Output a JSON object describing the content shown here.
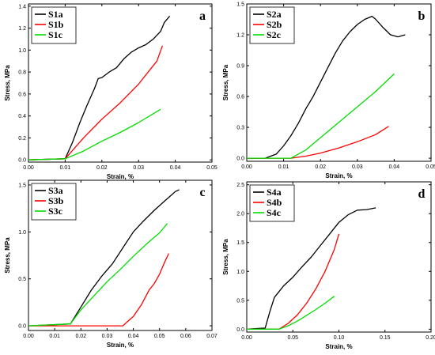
{
  "chart_data": [
    {
      "panel": "a",
      "type": "line",
      "xlabel": "Strain, %",
      "ylabel": "Stress, MPa",
      "xlim": [
        0,
        0.05
      ],
      "ylim": [
        -0.02,
        1.42
      ],
      "xticks": [
        "0.00",
        "0.01",
        "0.02",
        "0.03",
        "0.04",
        "0.05"
      ],
      "yticks": [
        "0.0",
        "0.2",
        "0.4",
        "0.6",
        "0.8",
        "1.0",
        "1.2",
        "1.4"
      ],
      "xtick_values": [
        0,
        0.01,
        0.02,
        0.03,
        0.04,
        0.05
      ],
      "ytick_values": [
        0,
        0.2,
        0.4,
        0.6,
        0.8,
        1.0,
        1.2,
        1.4
      ],
      "legend_position": "top-left",
      "series": [
        {
          "name": "S1a",
          "color": "#000000",
          "x": [
            0,
            0.01,
            0.012,
            0.014,
            0.016,
            0.018,
            0.019,
            0.02,
            0.022,
            0.024,
            0.026,
            0.028,
            0.03,
            0.032,
            0.034,
            0.036,
            0.037,
            0.0385
          ],
          "y": [
            0,
            0.01,
            0.16,
            0.34,
            0.5,
            0.65,
            0.74,
            0.75,
            0.8,
            0.84,
            0.92,
            0.98,
            1.02,
            1.05,
            1.1,
            1.17,
            1.25,
            1.31
          ]
        },
        {
          "name": "S1b",
          "color": "#ff0000",
          "x": [
            0,
            0.01,
            0.015,
            0.02,
            0.025,
            0.03,
            0.035,
            0.0365
          ],
          "y": [
            0,
            0.01,
            0.2,
            0.37,
            0.52,
            0.69,
            0.9,
            1.04
          ]
        },
        {
          "name": "S1c",
          "color": "#00dd00",
          "x": [
            0,
            0.01,
            0.015,
            0.02,
            0.025,
            0.03,
            0.035,
            0.036
          ],
          "y": [
            0,
            0.01,
            0.08,
            0.17,
            0.25,
            0.34,
            0.44,
            0.46
          ]
        }
      ],
      "panel_label": "a"
    },
    {
      "panel": "b",
      "type": "line",
      "xlabel": "Strain, %",
      "ylabel": "Stress, MPa",
      "xlim": [
        0,
        0.05
      ],
      "ylim": [
        -0.03,
        1.5
      ],
      "xticks": [
        "0.00",
        "0.01",
        "0.02",
        "0.03",
        "0.04",
        "0.05"
      ],
      "yticks": [
        "0.0",
        "0.3",
        "0.6",
        "0.9",
        "1.2",
        "1.5"
      ],
      "xtick_values": [
        0,
        0.01,
        0.02,
        0.03,
        0.04,
        0.05
      ],
      "ytick_values": [
        0,
        0.3,
        0.6,
        0.9,
        1.2,
        1.5
      ],
      "legend_position": "top-left",
      "series": [
        {
          "name": "S2a",
          "color": "#000000",
          "x": [
            0,
            0.005,
            0.008,
            0.01,
            0.012,
            0.014,
            0.016,
            0.018,
            0.02,
            0.022,
            0.024,
            0.026,
            0.028,
            0.03,
            0.032,
            0.034,
            0.035,
            0.037,
            0.039,
            0.041,
            0.043
          ],
          "y": [
            0,
            0.0,
            0.04,
            0.12,
            0.22,
            0.34,
            0.48,
            0.6,
            0.74,
            0.88,
            1.02,
            1.14,
            1.23,
            1.3,
            1.35,
            1.38,
            1.35,
            1.27,
            1.2,
            1.18,
            1.2
          ]
        },
        {
          "name": "S2b",
          "color": "#ff0000",
          "x": [
            0,
            0.012,
            0.016,
            0.02,
            0.025,
            0.03,
            0.035,
            0.0385
          ],
          "y": [
            0,
            0.0,
            0.02,
            0.05,
            0.1,
            0.16,
            0.23,
            0.31
          ]
        },
        {
          "name": "S2c",
          "color": "#00dd00",
          "x": [
            0,
            0.012,
            0.016,
            0.02,
            0.025,
            0.03,
            0.035,
            0.04
          ],
          "y": [
            0,
            0.0,
            0.08,
            0.2,
            0.35,
            0.5,
            0.65,
            0.82
          ]
        }
      ],
      "panel_label": "b"
    },
    {
      "panel": "c",
      "type": "line",
      "xlabel": "Strain, %",
      "ylabel": "Stress, MPa",
      "xlim": [
        0,
        0.07
      ],
      "ylim": [
        -0.05,
        1.55
      ],
      "xticks": [
        "0.00",
        "0.01",
        "0.02",
        "0.03",
        "0.04",
        "0.05",
        "0.06",
        "0.07"
      ],
      "yticks": [
        "0.0",
        "0.5",
        "1.0",
        "1.5"
      ],
      "xtick_values": [
        0,
        0.01,
        0.02,
        0.03,
        0.04,
        0.05,
        0.06,
        0.07
      ],
      "ytick_values": [
        0,
        0.5,
        1.0,
        1.5
      ],
      "legend_position": "top-left",
      "series": [
        {
          "name": "S3a",
          "color": "#000000",
          "x": [
            0,
            0.016,
            0.02,
            0.024,
            0.028,
            0.032,
            0.036,
            0.04,
            0.044,
            0.048,
            0.052,
            0.054,
            0.056,
            0.0575
          ],
          "y": [
            0,
            0.02,
            0.2,
            0.38,
            0.53,
            0.66,
            0.83,
            1.0,
            1.12,
            1.23,
            1.33,
            1.38,
            1.43,
            1.45
          ]
        },
        {
          "name": "S3b",
          "color": "#ff0000",
          "x": [
            0,
            0.036,
            0.038,
            0.04,
            0.043,
            0.046,
            0.048,
            0.05,
            0.052,
            0.0535
          ],
          "y": [
            0,
            0.0,
            0.05,
            0.1,
            0.22,
            0.38,
            0.45,
            0.55,
            0.68,
            0.77
          ]
        },
        {
          "name": "S3c",
          "color": "#00dd00",
          "x": [
            0,
            0.016,
            0.02,
            0.025,
            0.03,
            0.035,
            0.04,
            0.045,
            0.05,
            0.053
          ],
          "y": [
            0,
            0.02,
            0.17,
            0.32,
            0.47,
            0.6,
            0.74,
            0.87,
            0.99,
            1.09
          ]
        }
      ],
      "panel_label": "c"
    },
    {
      "panel": "d",
      "type": "line",
      "xlabel": "Strain, %",
      "ylabel": "Stress, MPa",
      "xlim": [
        0,
        0.2
      ],
      "ylim": [
        -0.05,
        2.55
      ],
      "xticks": [
        "0.00",
        "0.05",
        "0.10",
        "0.15",
        "0.20"
      ],
      "yticks": [
        "0.0",
        "0.5",
        "1.0",
        "1.5",
        "2.0",
        "2.5"
      ],
      "xtick_values": [
        0,
        0.05,
        0.1,
        0.15,
        0.2
      ],
      "ytick_values": [
        0,
        0.5,
        1.0,
        1.5,
        2.0,
        2.5
      ],
      "legend_position": "top-left",
      "series": [
        {
          "name": "S4a",
          "color": "#000000",
          "x": [
            0,
            0.02,
            0.025,
            0.03,
            0.035,
            0.04,
            0.05,
            0.06,
            0.07,
            0.08,
            0.09,
            0.1,
            0.11,
            0.12,
            0.13,
            0.14
          ],
          "y": [
            0,
            0.02,
            0.3,
            0.55,
            0.65,
            0.75,
            0.9,
            1.08,
            1.25,
            1.45,
            1.65,
            1.85,
            1.98,
            2.06,
            2.07,
            2.1
          ]
        },
        {
          "name": "S4b",
          "color": "#ff0000",
          "x": [
            0,
            0.035,
            0.045,
            0.055,
            0.065,
            0.075,
            0.085,
            0.095,
            0.1
          ],
          "y": [
            0,
            0.0,
            0.1,
            0.25,
            0.45,
            0.7,
            1.0,
            1.38,
            1.65
          ]
        },
        {
          "name": "S4c",
          "color": "#00dd00",
          "x": [
            0,
            0.035,
            0.045,
            0.055,
            0.065,
            0.075,
            0.085,
            0.095
          ],
          "y": [
            0,
            0.0,
            0.06,
            0.14,
            0.24,
            0.34,
            0.45,
            0.57
          ]
        }
      ],
      "panel_label": "d"
    }
  ]
}
